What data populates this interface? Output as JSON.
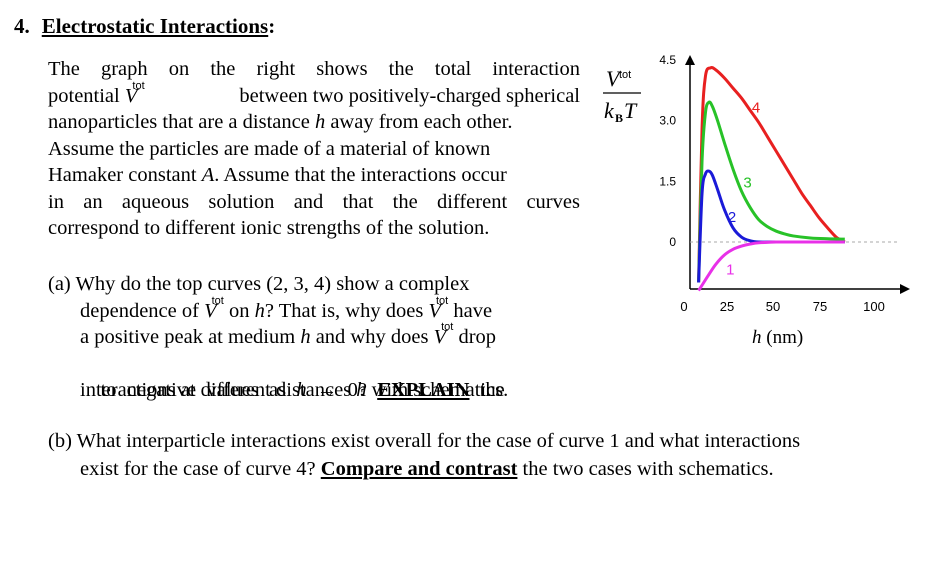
{
  "question": {
    "number": "4.",
    "heading": "Electrostatic Interactions",
    "colon": ":",
    "intro": {
      "l1": [
        "The",
        "graph",
        "on",
        "the",
        "right",
        "shows",
        "the",
        "total",
        "interaction"
      ],
      "l2a": "potential ",
      "l2b": "between two positively-charged spherical",
      "l3a": "nanoparticles that are a distance ",
      "l3h": "h",
      "l3b": " away from each other.",
      "l4": "Assume the particles are made of a material of known",
      "l5a": "Hamaker constant ",
      "l5A": "A",
      "l5b": ". Assume that the interactions occur",
      "l6": [
        "in",
        "an",
        "aqueous",
        "solution",
        "and",
        "that",
        "the",
        "different",
        "curves"
      ],
      "l7": "correspond to different ionic strengths  of the solution."
    },
    "part_a": {
      "l1": "(a) Why do the top curves (2, 3, 4) show a complex",
      "l2a": "dependence of ",
      "l2b": " on ",
      "l2h": "h",
      "l2c": "? That is, why does ",
      "l2d": " have",
      "l3a": "a positive peak at medium ",
      "l3h": "h",
      "l3b": " and why does ",
      "l3c": " drop",
      "l4a": "to  negative  values  as  ",
      "l4h": "h",
      "l4b": "  →  0?  ",
      "l4explain": "EXPLAIN",
      "l4c": "  the",
      "l5a": "interactions at different distances ",
      "l5h": "h",
      "l5b": " with schematics."
    },
    "part_b": {
      "l1": "(b) What interparticle interactions exist overall for the case of curve 1 and what interactions",
      "l2a": "exist for the case of curve 4? ",
      "l2cc": "Compare and contrast",
      "l2b": " the two cases with schematics."
    },
    "symbol_V": "V",
    "symbol_tot": "tot"
  },
  "chart_data": {
    "type": "line",
    "ylabel_num": "V",
    "ylabel_sup": "tot",
    "ylabel_den": "k",
    "ylabel_den_sub": "B",
    "ylabel_den_T": "T",
    "xlabel": "h (nm)",
    "xlabel_h": "h",
    "xlabel_unit": " (nm)",
    "x_ticks": [
      "0",
      "25",
      "50",
      "75",
      "100"
    ],
    "y_ticks": [
      "4.5",
      "3.0",
      "1.5",
      "0"
    ],
    "x_tick_values": [
      0,
      25,
      50,
      75,
      100
    ],
    "y_tick_values": [
      4.5,
      3.0,
      1.5,
      0
    ],
    "xlim": [
      0,
      100
    ],
    "ylim": [
      -1.2,
      4.5
    ],
    "zero_line": "dashed",
    "series": [
      {
        "name": "4",
        "color": "#e82020",
        "x": [
          5,
          7,
          9,
          12,
          15,
          20,
          25,
          30,
          35,
          40,
          45,
          50,
          55,
          60,
          65,
          70,
          75,
          80,
          85,
          90
        ],
        "y": [
          -1.0,
          2.8,
          4.1,
          4.3,
          4.25,
          4.05,
          3.8,
          3.55,
          3.25,
          2.95,
          2.6,
          2.25,
          1.9,
          1.55,
          1.2,
          0.9,
          0.6,
          0.35,
          0.12,
          0.0
        ]
      },
      {
        "name": "3",
        "color": "#28c228",
        "x": [
          5,
          7,
          9,
          11,
          13,
          16,
          20,
          25,
          30,
          35,
          40,
          45,
          50,
          55,
          60,
          70,
          80,
          90
        ],
        "y": [
          -1.0,
          2.0,
          3.2,
          3.45,
          3.35,
          3.0,
          2.45,
          1.8,
          1.25,
          0.85,
          0.55,
          0.38,
          0.27,
          0.2,
          0.15,
          0.1,
          0.08,
          0.07
        ]
      },
      {
        "name": "2",
        "color": "#1a1ad8",
        "x": [
          5,
          7,
          9,
          11,
          13,
          16,
          20,
          25,
          30,
          35,
          40,
          50,
          60,
          70,
          80,
          90
        ],
        "y": [
          -1.0,
          1.2,
          1.68,
          1.75,
          1.65,
          1.3,
          0.8,
          0.35,
          0.12,
          0.03,
          0.0,
          0.0,
          0.0,
          0.0,
          0.0,
          0.0
        ]
      },
      {
        "name": "1",
        "color": "#e830e8",
        "x": [
          5,
          8,
          11,
          15,
          20,
          25,
          30,
          35,
          40,
          50,
          60,
          70,
          80,
          90
        ],
        "y": [
          -1.2,
          -1.0,
          -0.8,
          -0.55,
          -0.32,
          -0.18,
          -0.1,
          -0.05,
          -0.02,
          0.0,
          0.0,
          0.0,
          0.0,
          0.0
        ]
      }
    ],
    "curve_labels": [
      {
        "text": "4",
        "series": "4",
        "x": 36,
        "y": 3.2,
        "color": "#e82020"
      },
      {
        "text": "3",
        "series": "3",
        "x": 31,
        "y": 1.35,
        "color": "#28c228"
      },
      {
        "text": "2",
        "series": "2",
        "x": 22,
        "y": 0.5,
        "color": "#1a1ad8"
      },
      {
        "text": "1",
        "series": "1",
        "x": 21,
        "y": -0.8,
        "color": "#e830e8"
      }
    ]
  }
}
